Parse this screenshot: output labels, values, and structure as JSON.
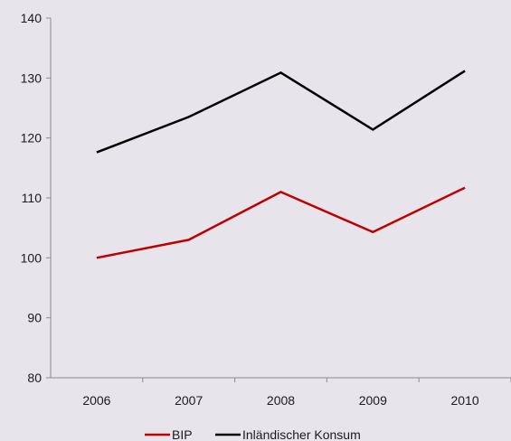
{
  "chart_data": {
    "type": "line",
    "categories": [
      "2006",
      "2007",
      "2008",
      "2009",
      "2010"
    ],
    "series": [
      {
        "name": "BIP",
        "values": [
          100,
          103,
          111,
          104.3,
          111.7
        ],
        "color": "#c00000"
      },
      {
        "name": "Inländischer Konsum",
        "values": [
          117.6,
          123.5,
          130.9,
          121.4,
          131.2
        ],
        "color": "#000000"
      }
    ],
    "ylim": [
      80,
      140
    ],
    "yticks": [
      "80",
      "90",
      "100",
      "110",
      "120",
      "130",
      "140"
    ],
    "grid": false,
    "legend": "bottom",
    "title": "",
    "xlabel": "",
    "ylabel": ""
  }
}
